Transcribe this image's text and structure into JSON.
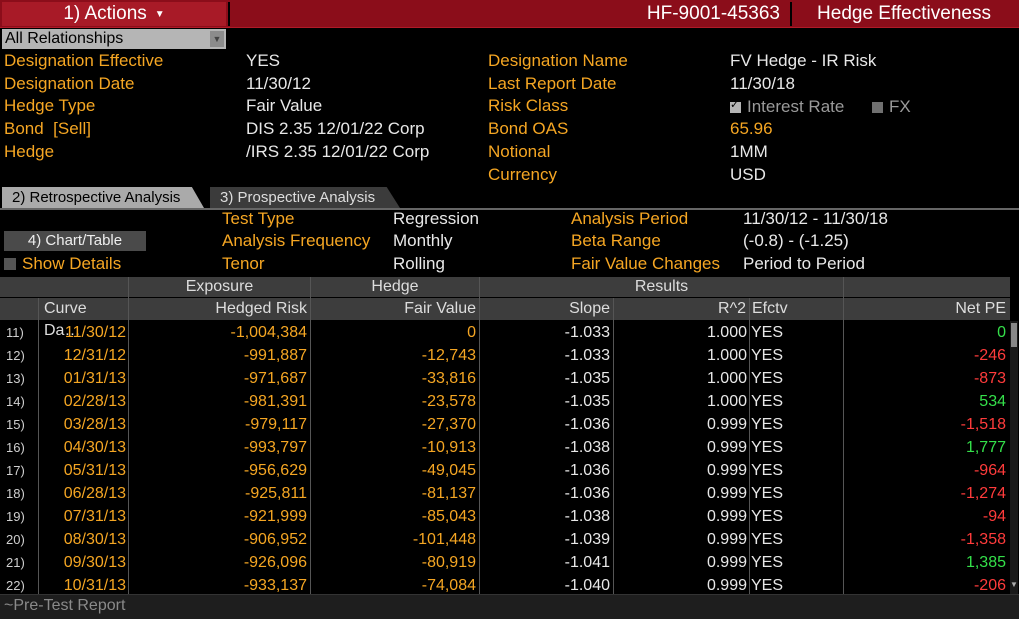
{
  "header": {
    "actions_label": "1) Actions",
    "ticker": "HF-9001-45363",
    "title": "Hedge Effectiveness"
  },
  "relationship_select": {
    "value": "All Relationships"
  },
  "info_left": [
    {
      "label": "Designation Effective",
      "value": "YES"
    },
    {
      "label": "Designation Date",
      "value": "11/30/12"
    },
    {
      "label": "Hedge Type",
      "value": "Fair Value"
    },
    {
      "label": "Bond  [Sell]",
      "value": "DIS 2.35 12/01/22 Corp"
    },
    {
      "label": "Hedge",
      "value": "/IRS 2.35 12/01/22 Corp"
    }
  ],
  "info_right": {
    "designation_name_label": "Designation Name",
    "designation_name": "FV Hedge - IR Risk",
    "last_report_label": "Last Report Date",
    "last_report": "11/30/18",
    "risk_class_label": "Risk Class",
    "risk_interest": "Interest Rate",
    "risk_fx": "FX",
    "bond_oas_label": "Bond OAS",
    "bond_oas": "65.96",
    "notional_label": "Notional",
    "notional": "1MM",
    "currency_label": "Currency",
    "currency": "USD"
  },
  "tabs": {
    "retro": "2) Retrospective Analysis",
    "prosp": "3) Prospective Analysis"
  },
  "controls": {
    "chart_table": "4) Chart/Table",
    "show_details": "Show Details"
  },
  "params": {
    "test_type_label": "Test Type",
    "test_type": "Regression",
    "freq_label": "Analysis Frequency",
    "freq": "Monthly",
    "tenor_label": "Tenor",
    "tenor": "Rolling",
    "period_label": "Analysis Period",
    "period": "11/30/12 - 11/30/18",
    "beta_label": "Beta Range",
    "beta": "(-0.8) - (-1.25)",
    "fv_label": "Fair Value Changes",
    "fv": "Period to Period"
  },
  "table": {
    "groups": {
      "exposure": "Exposure",
      "hedge": "Hedge",
      "results": "Results"
    },
    "columns": {
      "curve_date": "Curve Da…",
      "hedged_risk": "Hedged Risk",
      "fair_value": "Fair Value",
      "slope": "Slope",
      "r2": "R^2",
      "efctv": "Efctv",
      "net_pe": "Net PE"
    },
    "rows": [
      {
        "num": "11)",
        "date": "11/30/12",
        "risk": "-1,004,384",
        "fv": "0",
        "slope": "-1.033",
        "r2": "1.000",
        "eff": "YES",
        "pe": "0",
        "pe_color": "g"
      },
      {
        "num": "12)",
        "date": "12/31/12",
        "risk": "-991,887",
        "fv": "-12,743",
        "slope": "-1.033",
        "r2": "1.000",
        "eff": "YES",
        "pe": "-246",
        "pe_color": "r"
      },
      {
        "num": "13)",
        "date": "01/31/13",
        "risk": "-971,687",
        "fv": "-33,816",
        "slope": "-1.035",
        "r2": "1.000",
        "eff": "YES",
        "pe": "-873",
        "pe_color": "r"
      },
      {
        "num": "14)",
        "date": "02/28/13",
        "risk": "-981,391",
        "fv": "-23,578",
        "slope": "-1.035",
        "r2": "1.000",
        "eff": "YES",
        "pe": "534",
        "pe_color": "g"
      },
      {
        "num": "15)",
        "date": "03/28/13",
        "risk": "-979,117",
        "fv": "-27,370",
        "slope": "-1.036",
        "r2": "0.999",
        "eff": "YES",
        "pe": "-1,518",
        "pe_color": "r"
      },
      {
        "num": "16)",
        "date": "04/30/13",
        "risk": "-993,797",
        "fv": "-10,913",
        "slope": "-1.038",
        "r2": "0.999",
        "eff": "YES",
        "pe": "1,777",
        "pe_color": "g"
      },
      {
        "num": "17)",
        "date": "05/31/13",
        "risk": "-956,629",
        "fv": "-49,045",
        "slope": "-1.036",
        "r2": "0.999",
        "eff": "YES",
        "pe": "-964",
        "pe_color": "r"
      },
      {
        "num": "18)",
        "date": "06/28/13",
        "risk": "-925,811",
        "fv": "-81,137",
        "slope": "-1.036",
        "r2": "0.999",
        "eff": "YES",
        "pe": "-1,274",
        "pe_color": "r"
      },
      {
        "num": "19)",
        "date": "07/31/13",
        "risk": "-921,999",
        "fv": "-85,043",
        "slope": "-1.038",
        "r2": "0.999",
        "eff": "YES",
        "pe": "-94",
        "pe_color": "r"
      },
      {
        "num": "20)",
        "date": "08/30/13",
        "risk": "-906,952",
        "fv": "-101,448",
        "slope": "-1.039",
        "r2": "0.999",
        "eff": "YES",
        "pe": "-1,358",
        "pe_color": "r"
      },
      {
        "num": "21)",
        "date": "09/30/13",
        "risk": "-926,096",
        "fv": "-80,919",
        "slope": "-1.041",
        "r2": "0.999",
        "eff": "YES",
        "pe": "1,385",
        "pe_color": "g"
      },
      {
        "num": "22)",
        "date": "10/31/13",
        "risk": "-933,137",
        "fv": "-74,084",
        "slope": "-1.040",
        "r2": "0.999",
        "eff": "YES",
        "pe": "-206",
        "pe_color": "r"
      }
    ]
  },
  "footer": {
    "text": "~Pre-Test Report"
  },
  "colors": {
    "accent_orange": "#f5a623",
    "title_red": "#8b0d1a",
    "positive": "#34e04a",
    "negative": "#ff3b3b"
  }
}
